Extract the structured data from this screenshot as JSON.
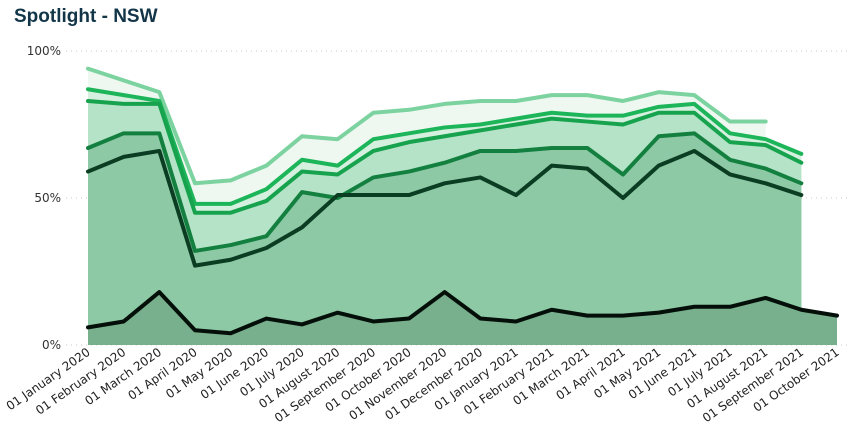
{
  "chart_data": {
    "type": "area",
    "title": "Spotlight - NSW",
    "xlabel": "",
    "ylabel": "",
    "ylim": [
      0,
      100
    ],
    "y_ticks": [
      "0%",
      "50%",
      "100%"
    ],
    "grid": "horizontal dotted",
    "legend": "none",
    "categories": [
      "01 January 2020",
      "01 February 2020",
      "01 March 2020",
      "01 April 2020",
      "01 May 2020",
      "01 June 2020",
      "01 July 2020",
      "01 August 2020",
      "01 September 2020",
      "01 October 2020",
      "01 November 2020",
      "01 December 2020",
      "01 January 2021",
      "01 February 2021",
      "01 March 2021",
      "01 April 2021",
      "01 May 2021",
      "01 June 2021",
      "01 July 2021",
      "01 August 2021",
      "01 September 2021",
      "01 October 2021"
    ],
    "series": [
      {
        "color": "#7dd3a0",
        "fill": "#eef8f1",
        "values": [
          94,
          90,
          86,
          55,
          56,
          61,
          71,
          70,
          79,
          80,
          82,
          83,
          83,
          85,
          85,
          83,
          86,
          85,
          76,
          76,
          null,
          null
        ]
      },
      {
        "color": "#1db559",
        "fill": "#d6f0df",
        "values": [
          87,
          85,
          83,
          48,
          48,
          53,
          63,
          61,
          70,
          72,
          74,
          75,
          77,
          79,
          78,
          78,
          81,
          82,
          72,
          70,
          65,
          null
        ]
      },
      {
        "color": "#17a34e",
        "fill": "#b5e3c8",
        "values": [
          83,
          82,
          82,
          45,
          45,
          49,
          59,
          58,
          66,
          69,
          71,
          73,
          75,
          77,
          76,
          75,
          79,
          79,
          69,
          68,
          62,
          null
        ]
      },
      {
        "color": "#138040",
        "fill": "#8ec9a6",
        "values": [
          67,
          72,
          72,
          32,
          34,
          37,
          52,
          50,
          57,
          59,
          62,
          66,
          66,
          67,
          67,
          58,
          71,
          72,
          63,
          60,
          55,
          null
        ]
      },
      {
        "color": "#0b3d22",
        "fill": "#8cc9a4",
        "values": [
          59,
          64,
          66,
          27,
          29,
          33,
          40,
          51,
          51,
          51,
          55,
          57,
          51,
          61,
          60,
          50,
          61,
          66,
          58,
          55,
          51,
          null
        ]
      },
      {
        "color": "#050f09",
        "fill": "#78af8c",
        "values": [
          6,
          8,
          18,
          5,
          4,
          9,
          7,
          11,
          8,
          9,
          18,
          9,
          8,
          12,
          10,
          10,
          11,
          13,
          13,
          16,
          12,
          10
        ]
      }
    ]
  }
}
